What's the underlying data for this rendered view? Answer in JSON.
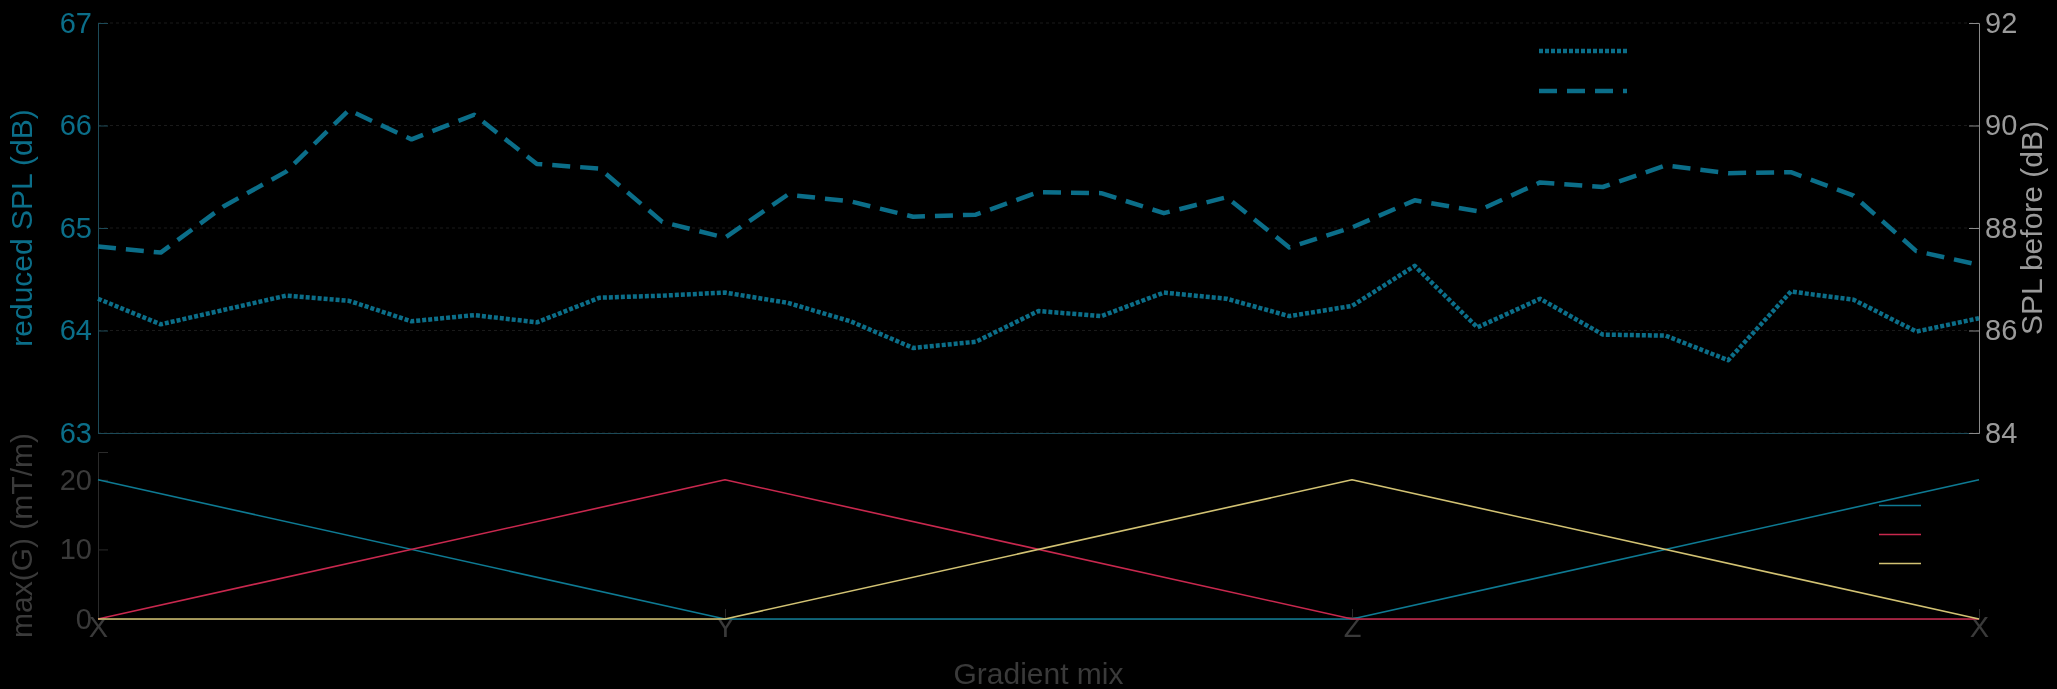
{
  "chart_data": [
    {
      "type": "line",
      "ylabel": "reduced SPL (dB)",
      "y2label": "SPL before (dB)",
      "categories": [
        null,
        null,
        null,
        null,
        null,
        null,
        null,
        null,
        null,
        null,
        null,
        null,
        null,
        null,
        null,
        null,
        null,
        null,
        null,
        null,
        null,
        null,
        null,
        null,
        null,
        null,
        null,
        null,
        null,
        null,
        null
      ],
      "ylim": [
        63,
        67
      ],
      "yticks": [
        63,
        64,
        65,
        66,
        67
      ],
      "y2lim": [
        84,
        92
      ],
      "y2ticks": [
        84,
        86,
        88,
        90,
        92
      ],
      "tick_labels": "y",
      "grid": "y",
      "series": [
        {
          "color": "#0b6e89",
          "line_style": "dotted",
          "values": [
            64.31,
            64.06,
            64.2,
            64.34,
            64.29,
            64.09,
            64.15,
            64.08,
            64.32,
            64.34,
            64.37,
            64.27,
            64.09,
            63.83,
            63.89,
            64.19,
            64.14,
            64.37,
            64.31,
            64.14,
            64.24,
            64.63,
            64.03,
            64.31,
            63.96,
            63.95,
            63.71,
            64.38,
            64.3,
            63.99,
            64.12
          ]
        },
        {
          "color": "#0b6e89",
          "line_style": "dashed",
          "axis": "y2",
          "values": [
            87.64,
            87.52,
            88.42,
            89.1,
            90.3,
            89.73,
            90.21,
            89.25,
            89.16,
            88.12,
            87.81,
            88.65,
            88.52,
            88.22,
            88.26,
            88.7,
            88.68,
            88.29,
            88.6,
            87.62,
            88.01,
            88.54,
            88.33,
            88.89,
            88.8,
            89.22,
            89.07,
            89.09,
            88.63,
            87.55,
            87.28
          ]
        }
      ]
    },
    {
      "type": "line",
      "xlabel": "Gradient mix",
      "ylabel": "max(G) (mT/m)",
      "categories": [
        "X",
        "Y",
        "Z",
        "X"
      ],
      "ylim": [
        0,
        24
      ],
      "yticks": [
        0,
        10,
        20
      ],
      "line_style": "solid",
      "series": [
        {
          "color": "#0e7a93",
          "values": [
            20,
            0,
            0,
            20
          ]
        },
        {
          "color": "#c8284e",
          "values": [
            0,
            20,
            0,
            0
          ]
        },
        {
          "color": "#d2c273",
          "values": [
            0,
            0,
            20,
            0
          ]
        }
      ]
    }
  ]
}
